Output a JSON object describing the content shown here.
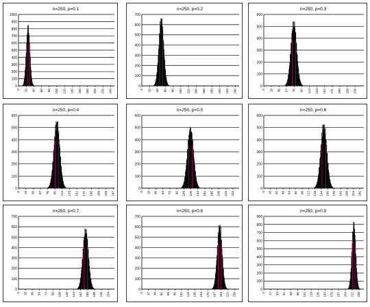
{
  "colors": {
    "bar": "#000000",
    "accent": "#e0007a",
    "grid": "#000000",
    "axis": "#000000",
    "text": "#000000"
  },
  "chart_data": [
    {
      "type": "bar",
      "title": "n=250, p=0.1",
      "n": 250,
      "p": 0.1,
      "ylim": [
        0,
        1000
      ],
      "yticks": [
        0,
        100,
        200,
        300,
        400,
        500,
        600,
        700,
        800,
        900,
        1000
      ],
      "xlim": [
        0,
        250
      ],
      "xticks": [
        0,
        20,
        40,
        60,
        80,
        100,
        120,
        140,
        160,
        180,
        200,
        220,
        240
      ],
      "mean": 25,
      "sd": 4.74,
      "peak": 850,
      "grid": true,
      "legend": "none"
    },
    {
      "type": "bar",
      "title": "n=250, p=0.2",
      "n": 250,
      "p": 0.2,
      "ylim": [
        0,
        700
      ],
      "yticks": [
        0,
        100,
        200,
        300,
        400,
        500,
        600,
        700
      ],
      "xlim": [
        0,
        250
      ],
      "xticks": [
        0,
        20,
        40,
        60,
        80,
        100,
        120,
        140,
        160,
        180,
        200,
        220,
        240
      ],
      "mean": 50,
      "sd": 6.32,
      "peak": 660,
      "grid": true,
      "legend": "none"
    },
    {
      "type": "bar",
      "title": "n=250, p=0.3",
      "n": 250,
      "p": 0.3,
      "ylim": [
        0,
        600
      ],
      "yticks": [
        0,
        100,
        200,
        300,
        400,
        500,
        600
      ],
      "xlim": [
        0,
        250
      ],
      "xticks": [
        0,
        19,
        38,
        57,
        76,
        95,
        114,
        133,
        152,
        171,
        190,
        209,
        228
      ],
      "mean": 75,
      "sd": 7.25,
      "peak": 540,
      "grid": true,
      "legend": "none"
    },
    {
      "type": "bar",
      "title": "n=250, p=0.4",
      "n": 250,
      "p": 0.4,
      "ylim": [
        0,
        600
      ],
      "yticks": [
        0,
        100,
        200,
        300,
        400,
        500,
        600
      ],
      "xlim": [
        0,
        250
      ],
      "xticks": [
        0,
        19,
        38,
        57,
        76,
        95,
        114,
        133,
        152,
        171,
        190,
        209,
        228,
        247
      ],
      "mean": 100,
      "sd": 7.75,
      "peak": 550,
      "grid": true,
      "legend": "none"
    },
    {
      "type": "bar",
      "title": "n=250, p=0.5",
      "n": 250,
      "p": 0.5,
      "ylim": [
        0,
        600
      ],
      "yticks": [
        0,
        100,
        200,
        300,
        400,
        500,
        600
      ],
      "xlim": [
        0,
        250
      ],
      "xticks": [
        0,
        18,
        36,
        54,
        72,
        90,
        108,
        126,
        144,
        162,
        180,
        198,
        216,
        234
      ],
      "mean": 125,
      "sd": 7.91,
      "peak": 500,
      "grid": true,
      "legend": "none"
    },
    {
      "type": "bar",
      "title": "n=250, p=0.6",
      "n": 250,
      "p": 0.6,
      "ylim": [
        0,
        600
      ],
      "yticks": [
        0,
        100,
        200,
        300,
        400,
        500,
        600
      ],
      "xlim": [
        0,
        250
      ],
      "xticks": [
        0,
        16,
        32,
        48,
        64,
        80,
        96,
        112,
        128,
        144,
        160,
        176,
        192,
        208,
        224,
        240
      ],
      "mean": 150,
      "sd": 7.75,
      "peak": 525,
      "grid": true,
      "legend": "none"
    },
    {
      "type": "bar",
      "title": "n=250, p=0.7",
      "n": 250,
      "p": 0.7,
      "ylim": [
        0,
        700
      ],
      "yticks": [
        0,
        100,
        200,
        300,
        400,
        500,
        600,
        700
      ],
      "xlim": [
        0,
        250
      ],
      "xticks": [
        0,
        18,
        36,
        54,
        72,
        90,
        108,
        126,
        144,
        162,
        180,
        198,
        216,
        234
      ],
      "mean": 175,
      "sd": 7.25,
      "peak": 580,
      "grid": true,
      "legend": "none"
    },
    {
      "type": "bar",
      "title": "n=250, p=0.8",
      "n": 250,
      "p": 0.8,
      "ylim": [
        0,
        700
      ],
      "yticks": [
        0,
        100,
        200,
        300,
        400,
        500,
        600,
        700
      ],
      "xlim": [
        0,
        250
      ],
      "xticks": [
        0,
        17,
        34,
        51,
        68,
        85,
        102,
        119,
        136,
        153,
        170,
        187,
        204,
        221,
        238
      ],
      "mean": 200,
      "sd": 6.32,
      "peak": 620,
      "grid": true,
      "legend": "none"
    },
    {
      "type": "bar",
      "title": "n=250, p=0.9",
      "n": 250,
      "p": 0.9,
      "ylim": [
        0,
        900
      ],
      "yticks": [
        0,
        100,
        200,
        300,
        400,
        500,
        600,
        700,
        800,
        900
      ],
      "xlim": [
        0,
        250
      ],
      "xticks": [
        0,
        17,
        34,
        51,
        68,
        85,
        102,
        119,
        136,
        153,
        170,
        187,
        204,
        221,
        238
      ],
      "mean": 225,
      "sd": 4.74,
      "peak": 830,
      "grid": true,
      "legend": "none"
    }
  ]
}
